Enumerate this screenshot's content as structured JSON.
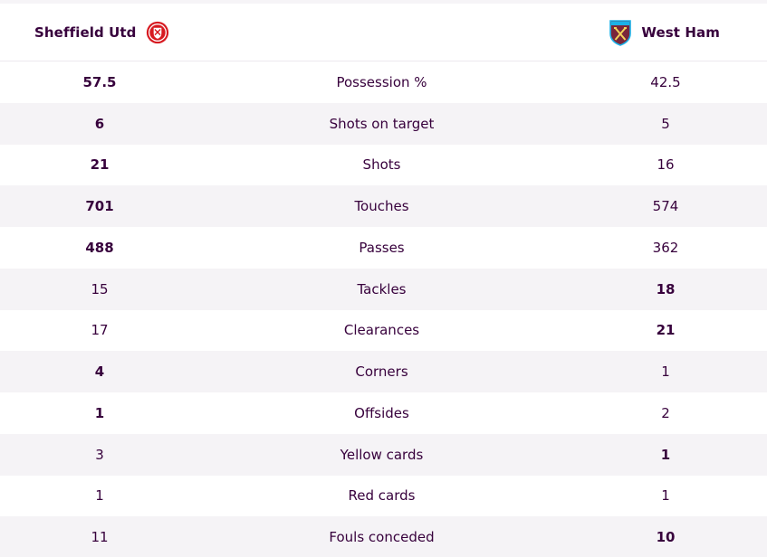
{
  "header": {
    "home_team": "Sheffield Utd",
    "away_team": "West Ham",
    "home_crest_icon": "sheffield-utd-crest-icon",
    "away_crest_icon": "west-ham-crest-icon"
  },
  "colors": {
    "text": "#37003c",
    "row_alt": "#f5f3f6",
    "home_crest_red": "#d71920",
    "away_crest_claret": "#7a263a",
    "away_crest_blue": "#1bb1e7"
  },
  "stats": [
    {
      "home": "57.5",
      "label": "Possession %",
      "away": "42.5",
      "leader": "home"
    },
    {
      "home": "6",
      "label": "Shots on target",
      "away": "5",
      "leader": "home"
    },
    {
      "home": "21",
      "label": "Shots",
      "away": "16",
      "leader": "home"
    },
    {
      "home": "701",
      "label": "Touches",
      "away": "574",
      "leader": "home"
    },
    {
      "home": "488",
      "label": "Passes",
      "away": "362",
      "leader": "home"
    },
    {
      "home": "15",
      "label": "Tackles",
      "away": "18",
      "leader": "away"
    },
    {
      "home": "17",
      "label": "Clearances",
      "away": "21",
      "leader": "away"
    },
    {
      "home": "4",
      "label": "Corners",
      "away": "1",
      "leader": "home"
    },
    {
      "home": "1",
      "label": "Offsides",
      "away": "2",
      "leader": "home"
    },
    {
      "home": "3",
      "label": "Yellow cards",
      "away": "1",
      "leader": "away"
    },
    {
      "home": "1",
      "label": "Red cards",
      "away": "1",
      "leader": "none"
    },
    {
      "home": "11",
      "label": "Fouls conceded",
      "away": "10",
      "leader": "away"
    }
  ]
}
